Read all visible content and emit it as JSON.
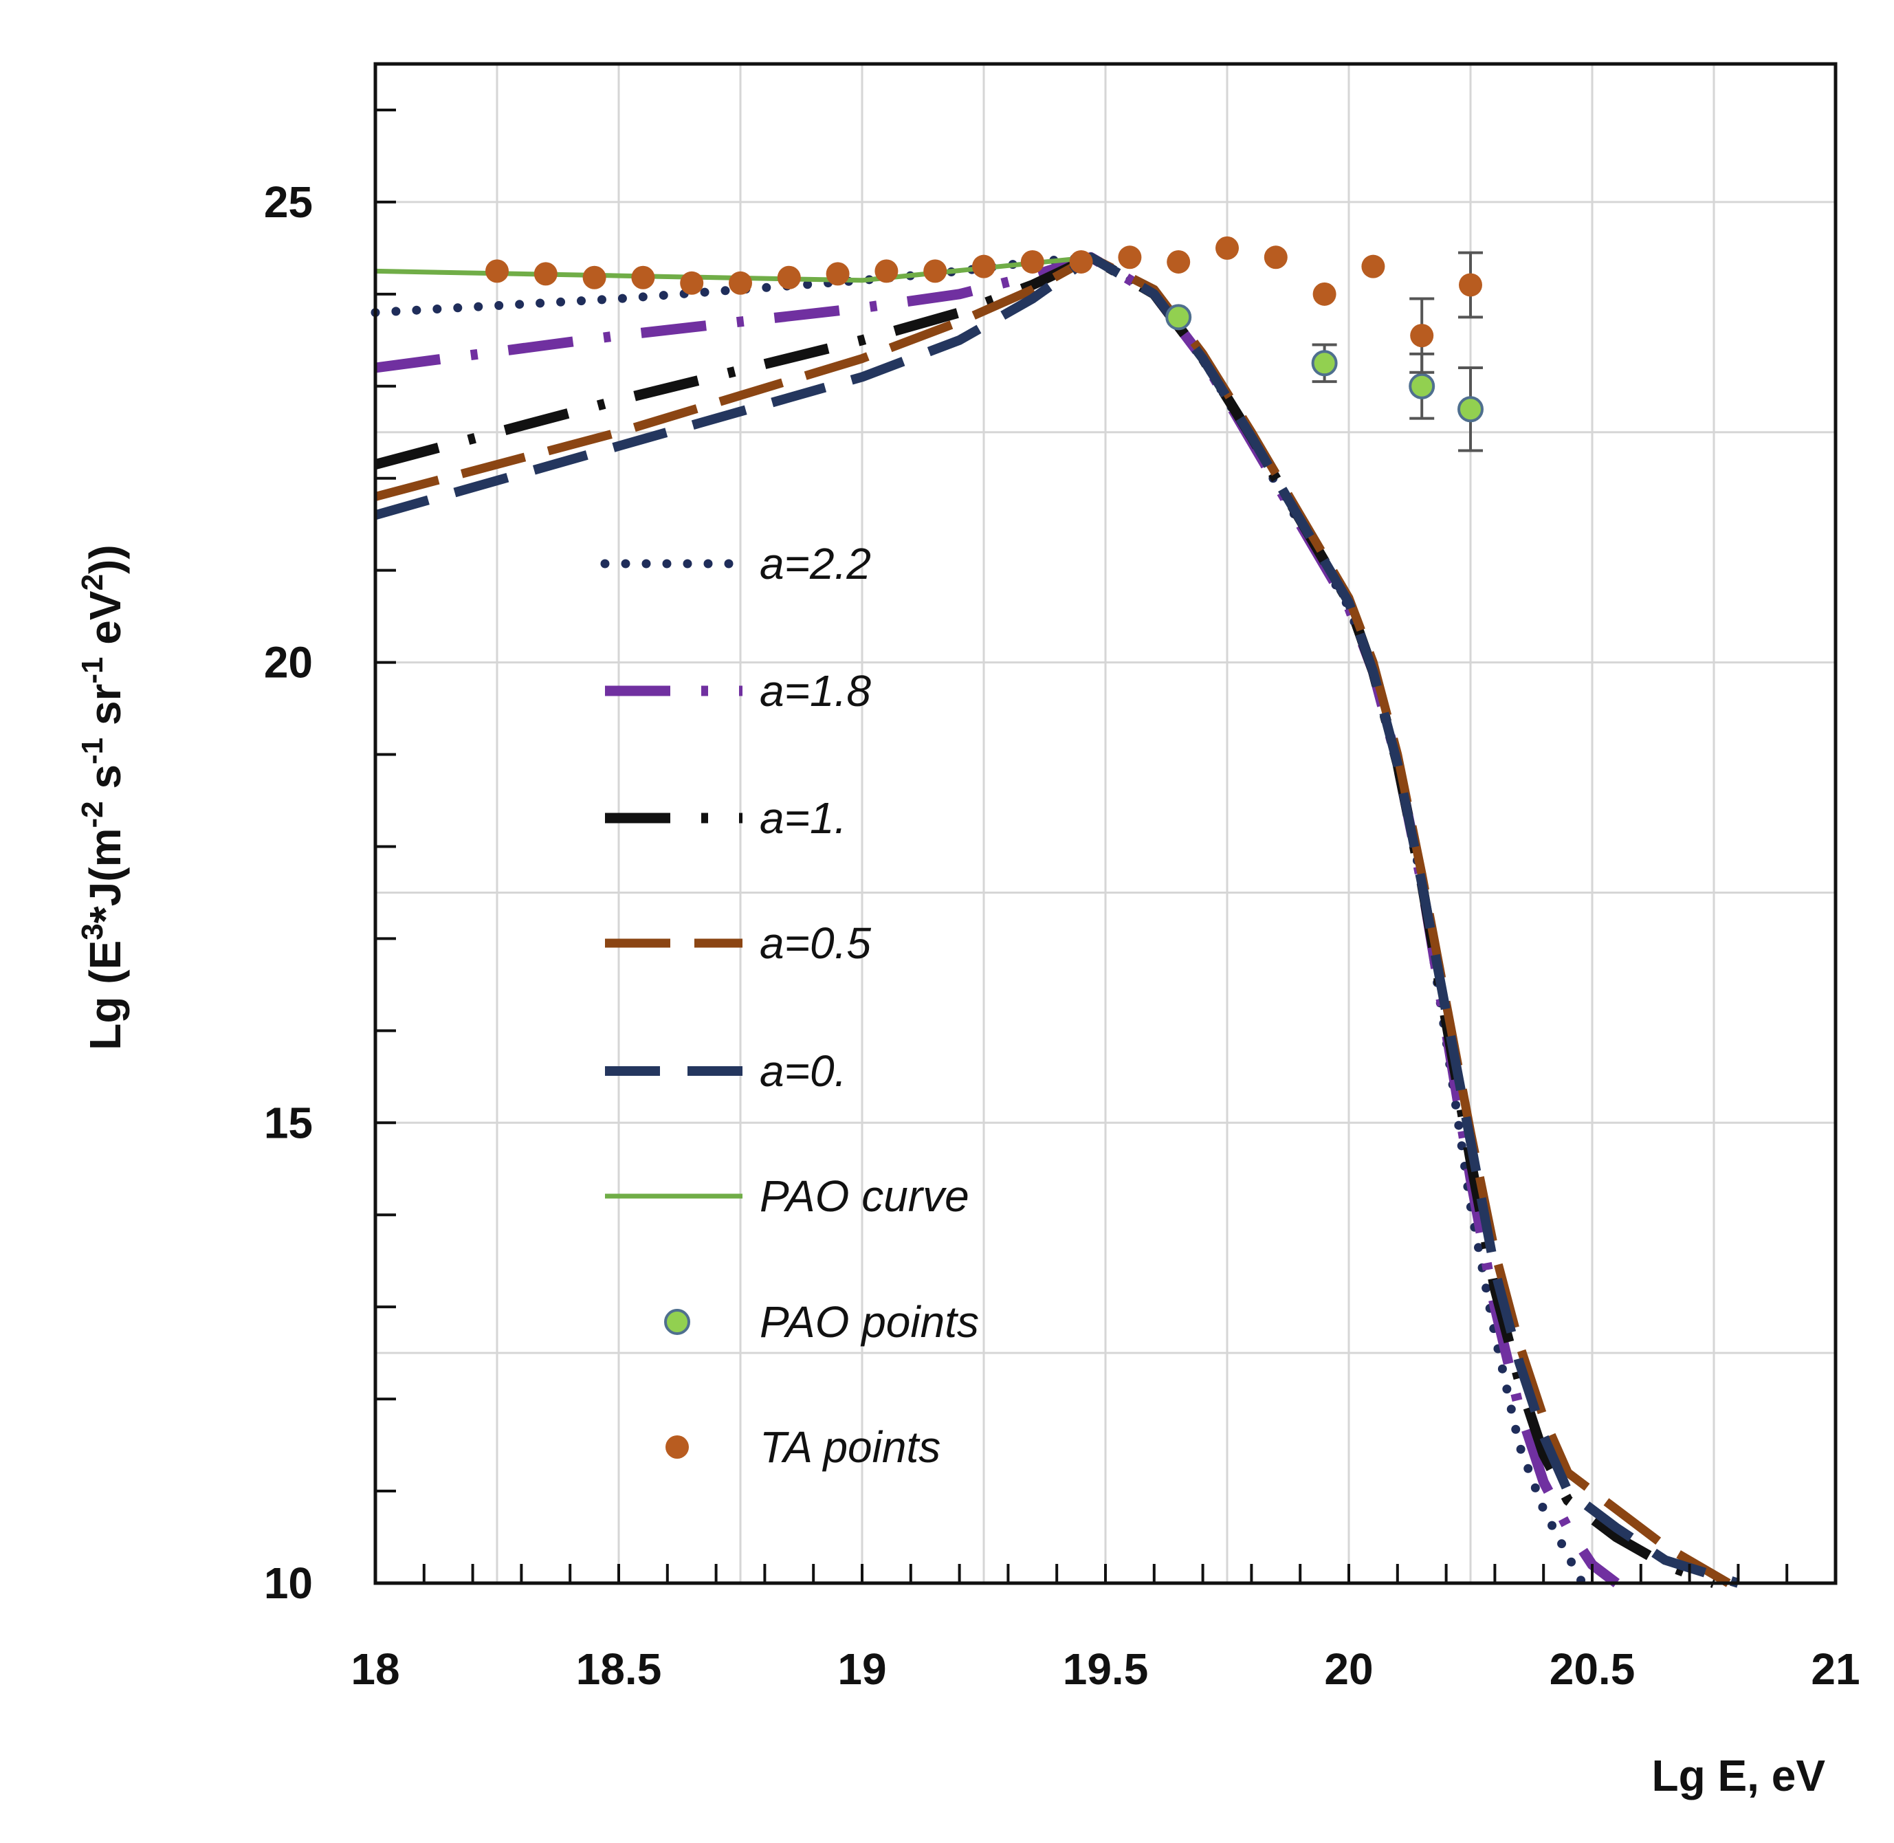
{
  "chart_data": {
    "type": "line",
    "xlabel": "Lg E, eV",
    "ylabel": "Lg (E",
    "ylabel_parts": {
      "p1": "Lg (E",
      "s1": "3",
      "p2": "*J(m",
      "s2": "-2",
      "p3": " s",
      "s3": "-1",
      "p4": " sr",
      "s4": "-1",
      "p5": " eV",
      "s5": "2",
      "p6": "))"
    },
    "xlim": [
      18,
      21
    ],
    "ylim": [
      10,
      26.5
    ],
    "x_ticks": [
      18,
      18.5,
      19,
      19.5,
      20,
      20.5,
      21
    ],
    "x_tick_labels": [
      "18",
      "18.5",
      "19",
      "19.5",
      "20",
      "20.5",
      "21"
    ],
    "y_ticks": [
      10,
      15,
      20,
      25
    ],
    "y_tick_labels": [
      "10",
      "15",
      "20",
      "25"
    ],
    "grid": true,
    "legend_position": "center-left",
    "series": [
      {
        "name": "a=2.2",
        "style": "dotted",
        "color": "#1f2d5a",
        "x": [
          18,
          18.5,
          19,
          19.2,
          19.35,
          19.47,
          19.6,
          19.7,
          19.8,
          19.9,
          20.0,
          20.05,
          20.1,
          20.15,
          20.2,
          20.25,
          20.3,
          20.35,
          20.4,
          20.45,
          20.48
        ],
        "y": [
          23.8,
          23.95,
          24.15,
          24.25,
          24.35,
          24.4,
          24.0,
          23.3,
          22.4,
          21.5,
          20.6,
          19.9,
          18.9,
          17.6,
          15.9,
          14.1,
          12.7,
          11.5,
          10.8,
          10.3,
          10.0
        ]
      },
      {
        "name": "a=1.8",
        "style": "dashdot",
        "color": "#7030a0",
        "x": [
          18,
          18.5,
          19,
          19.2,
          19.35,
          19.47,
          19.6,
          19.7,
          19.8,
          19.9,
          20.0,
          20.05,
          20.1,
          20.15,
          20.2,
          20.25,
          20.3,
          20.35,
          20.4,
          20.45,
          20.5,
          20.55
        ],
        "y": [
          23.2,
          23.55,
          23.85,
          24.0,
          24.2,
          24.4,
          24.0,
          23.3,
          22.4,
          21.5,
          20.6,
          19.9,
          18.9,
          17.6,
          16.0,
          14.4,
          13.0,
          11.9,
          11.1,
          10.6,
          10.2,
          10.0
        ]
      },
      {
        "name": "a=1.",
        "style": "dashdot",
        "color": "#111111",
        "x": [
          18,
          18.5,
          19,
          19.2,
          19.35,
          19.47,
          19.6,
          19.7,
          19.8,
          19.9,
          20.0,
          20.05,
          20.1,
          20.15,
          20.2,
          20.25,
          20.3,
          20.35,
          20.4,
          20.45,
          20.55,
          20.65,
          20.75
        ],
        "y": [
          22.15,
          22.85,
          23.5,
          23.8,
          24.1,
          24.4,
          24.0,
          23.3,
          22.45,
          21.55,
          20.65,
          19.9,
          18.9,
          17.6,
          16.1,
          14.6,
          13.2,
          12.2,
          11.4,
          10.9,
          10.5,
          10.2,
          10.0
        ]
      },
      {
        "name": "a=0.5",
        "style": "longdash",
        "color": "#8b4513",
        "x": [
          18,
          18.5,
          19,
          19.2,
          19.35,
          19.47,
          19.6,
          19.7,
          19.8,
          19.9,
          20.0,
          20.05,
          20.1,
          20.15,
          20.2,
          20.25,
          20.3,
          20.35,
          20.4,
          20.45,
          20.55,
          20.65,
          20.78
        ],
        "y": [
          21.8,
          22.5,
          23.3,
          23.7,
          24.05,
          24.4,
          24.05,
          23.35,
          22.5,
          21.6,
          20.7,
          20.0,
          19.0,
          17.7,
          16.3,
          14.9,
          13.6,
          12.6,
          11.8,
          11.2,
          10.8,
          10.4,
          10.0
        ]
      },
      {
        "name": "a=0.",
        "style": "dashed",
        "color": "#24365e",
        "x": [
          18,
          18.5,
          19,
          19.2,
          19.35,
          19.47,
          19.6,
          19.7,
          19.8,
          19.9,
          20.0,
          20.05,
          20.1,
          20.15,
          20.2,
          20.25,
          20.3,
          20.35,
          20.4,
          20.45,
          20.55,
          20.65,
          20.8
        ],
        "y": [
          21.6,
          22.35,
          23.1,
          23.5,
          23.95,
          24.4,
          24.0,
          23.3,
          22.45,
          21.55,
          20.65,
          19.9,
          18.9,
          17.6,
          16.2,
          14.8,
          13.4,
          12.4,
          11.6,
          11.0,
          10.6,
          10.25,
          10.0
        ]
      },
      {
        "name": "PAO curve",
        "style": "solid",
        "color": "#70ad47",
        "x": [
          18,
          18.5,
          19,
          19.47
        ],
        "y": [
          24.25,
          24.2,
          24.15,
          24.4
        ]
      }
    ],
    "points": [
      {
        "name": "PAO points",
        "color": "#92d050",
        "edge": "#4f6f8f",
        "x": [
          19.65,
          19.95,
          20.15,
          20.25
        ],
        "y": [
          23.75,
          23.25,
          23.0,
          22.75
        ],
        "err": [
          0,
          0.2,
          0.35,
          0.45
        ]
      },
      {
        "name": "TA points",
        "color": "#b85c20",
        "x": [
          18.25,
          18.35,
          18.45,
          18.55,
          18.65,
          18.75,
          18.85,
          18.95,
          19.05,
          19.15,
          19.25,
          19.35,
          19.45,
          19.55,
          19.65,
          19.75,
          19.85,
          19.95,
          20.05,
          20.15,
          20.25
        ],
        "y": [
          24.25,
          24.22,
          24.18,
          24.18,
          24.12,
          24.12,
          24.18,
          24.22,
          24.25,
          24.25,
          24.3,
          24.35,
          24.35,
          24.4,
          24.35,
          24.5,
          24.4,
          24.0,
          24.3,
          23.55,
          24.1
        ],
        "err": [
          0,
          0,
          0,
          0,
          0,
          0,
          0,
          0,
          0,
          0,
          0,
          0,
          0,
          0,
          0,
          0,
          0,
          0,
          0,
          0.4,
          0.35
        ]
      }
    ]
  }
}
